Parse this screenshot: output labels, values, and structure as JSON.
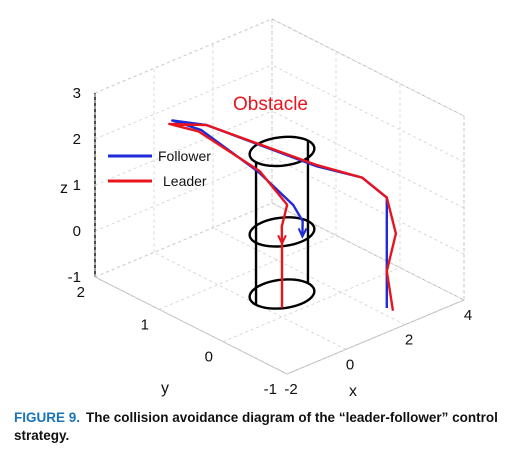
{
  "chart_data": {
    "type": "line3d",
    "xlabel": "x",
    "ylabel": "y",
    "zlabel": "z",
    "xlim": [
      -2,
      4
    ],
    "ylim": [
      -1,
      2
    ],
    "zlim": [
      -1,
      3
    ],
    "x_ticks": [
      "-2",
      "0",
      "2",
      "4"
    ],
    "y_ticks": [
      "-1",
      "0",
      "1",
      "2"
    ],
    "z_ticks": [
      "-1",
      "0",
      "1",
      "2",
      "3"
    ],
    "grid": true,
    "legend_position": "left",
    "annotation": "Obstacle",
    "obstacle": {
      "center": [
        0,
        0
      ],
      "radius": 0.55,
      "z_range": [
        -0.5,
        2.6
      ]
    },
    "series": [
      {
        "name": "Follower",
        "color": "#1f2bd8",
        "x": [
          1.6,
          1.6,
          1.6,
          1.2,
          0.1,
          -0.6,
          -0.9,
          0.3,
          0.5,
          0.6,
          0.7,
          0.8
        ],
        "y": [
          -0.9,
          -0.9,
          -0.9,
          -0.7,
          -0.5,
          0.9,
          1.3,
          1.4,
          0.6,
          0.1,
          0.0,
          0.05
        ],
        "z": [
          -0.6,
          0.5,
          1.8,
          2.2,
          2.6,
          2.7,
          2.6,
          2.0,
          1.6,
          1.2,
          0.9,
          0.5
        ]
      },
      {
        "name": "Leader",
        "color": "#e8141e",
        "x": [
          1.7,
          1.6,
          1.8,
          1.6,
          1.2,
          0.05,
          -0.6,
          -1.0,
          0.2,
          0.55,
          0.5,
          0.1,
          0.0,
          0.0
        ],
        "y": [
          -0.95,
          -0.9,
          -0.95,
          -0.9,
          -0.7,
          -0.5,
          0.9,
          1.3,
          1.4,
          0.6,
          0.15,
          0.05,
          0.0,
          0.0
        ],
        "z": [
          -0.65,
          0.2,
          1.0,
          1.8,
          2.2,
          2.65,
          2.7,
          2.55,
          2.0,
          1.6,
          1.2,
          0.9,
          0.6,
          -0.8
        ]
      }
    ]
  },
  "caption": {
    "label": "FIGURE 9.",
    "text": "The collision avoidance diagram of the “leader-follower” control strategy."
  }
}
